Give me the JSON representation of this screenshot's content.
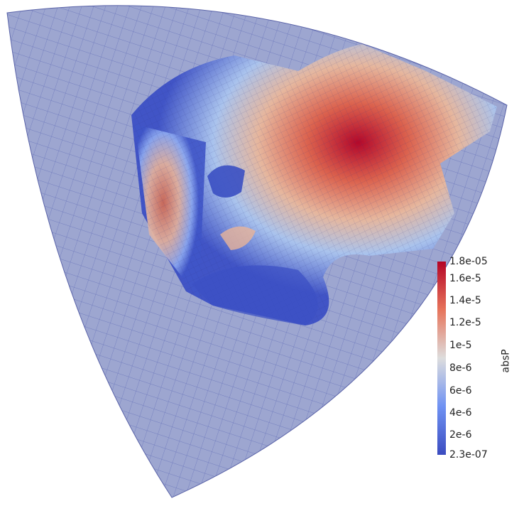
{
  "legend": {
    "title": "absP",
    "ticks": [
      "1.8e-05",
      "1.6e-5",
      "1.4e-5",
      "1.2e-5",
      "1e-5",
      "8e-6",
      "6e-6",
      "4e-6",
      "2e-6",
      "2.3e-07"
    ],
    "colors": {
      "max": "#b40426",
      "high": "#e7745b",
      "mid": "#dddddd",
      "low": "#6f92f3",
      "min": "#3b4cc0"
    }
  },
  "mesh": {
    "outer_color": "#8c96c8",
    "grid_color": "#3a46a8"
  }
}
